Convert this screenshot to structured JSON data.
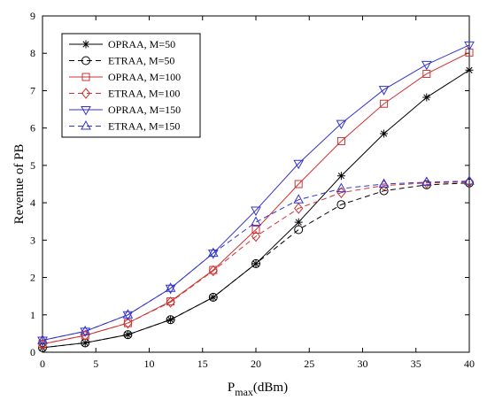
{
  "chart_data": {
    "type": "line",
    "xlabel_main": "P",
    "xlabel_sub": "max",
    "xlabel_unit": "(dBm)",
    "ylabel": "Revenue of PB",
    "xlim": [
      0,
      40
    ],
    "ylim": [
      0,
      9
    ],
    "xticks": [
      0,
      5,
      10,
      15,
      20,
      25,
      30,
      35,
      40
    ],
    "yticks": [
      0,
      1,
      2,
      3,
      4,
      5,
      6,
      7,
      8,
      9
    ],
    "grid": false,
    "legend_position": "top-left",
    "x": [
      0,
      4,
      8,
      12,
      16,
      20,
      24,
      28,
      32,
      36,
      40
    ],
    "series": [
      {
        "name": "OPRAA, M=50",
        "color": "#000000",
        "dash": "solid",
        "marker": "star",
        "values": [
          0.12,
          0.25,
          0.47,
          0.87,
          1.47,
          2.37,
          3.48,
          4.72,
          5.85,
          6.82,
          7.55
        ]
      },
      {
        "name": "ETRAA, M=50",
        "color": "#000000",
        "dash": "dashed",
        "marker": "circle",
        "values": [
          0.12,
          0.25,
          0.47,
          0.87,
          1.47,
          2.37,
          3.28,
          3.95,
          4.32,
          4.48,
          4.53
        ]
      },
      {
        "name": "OPRAA, M=100",
        "color": "#cc3333",
        "dash": "solid",
        "marker": "square",
        "values": [
          0.22,
          0.45,
          0.78,
          1.36,
          2.2,
          3.28,
          4.5,
          5.65,
          6.65,
          7.45,
          8.02
        ]
      },
      {
        "name": "ETRAA, M=100",
        "color": "#cc3333",
        "dash": "dashed",
        "marker": "diamond",
        "values": [
          0.22,
          0.45,
          0.78,
          1.34,
          2.18,
          3.1,
          3.85,
          4.27,
          4.46,
          4.53,
          4.56
        ]
      },
      {
        "name": "OPRAA, M=150",
        "color": "#3333cc",
        "dash": "solid",
        "marker": "triangle-down",
        "values": [
          0.32,
          0.56,
          1.0,
          1.71,
          2.65,
          3.8,
          5.05,
          6.12,
          7.03,
          7.7,
          8.22
        ]
      },
      {
        "name": "ETRAA, M=150",
        "color": "#3333cc",
        "dash": "dashed",
        "marker": "triangle-up",
        "values": [
          0.32,
          0.56,
          1.0,
          1.71,
          2.65,
          3.48,
          4.08,
          4.38,
          4.5,
          4.55,
          4.58
        ]
      }
    ]
  }
}
